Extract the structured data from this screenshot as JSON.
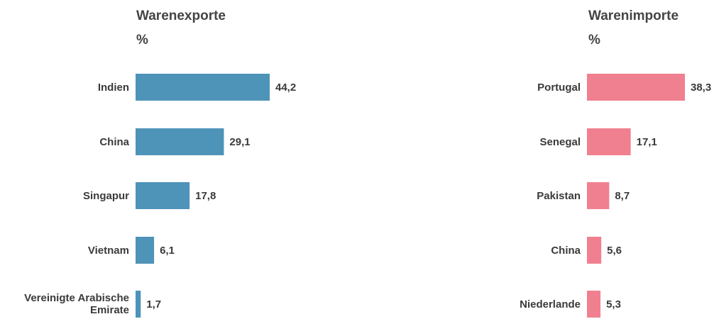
{
  "chart_data": [
    {
      "type": "bar",
      "orientation": "horizontal",
      "title": "Warenexporte",
      "unit": "%",
      "categories": [
        "Indien",
        "China",
        "Singapur",
        "Vietnam",
        "Vereinigte Arabische Emirate"
      ],
      "values": [
        44.2,
        29.1,
        17.8,
        6.1,
        1.7
      ],
      "value_labels": [
        "44,2",
        "29,1",
        "17,8",
        "6,1",
        "1,7"
      ],
      "color": "#4e93b8"
    },
    {
      "type": "bar",
      "orientation": "horizontal",
      "title": "Warenimporte",
      "unit": "%",
      "categories": [
        "Portugal",
        "Senegal",
        "Pakistan",
        "China",
        "Niederlande"
      ],
      "values": [
        38.3,
        17.1,
        8.7,
        5.6,
        5.3
      ],
      "value_labels": [
        "38,3",
        "17,1",
        "8,7",
        "5,6",
        "5,3"
      ],
      "color": "#f08090"
    }
  ]
}
